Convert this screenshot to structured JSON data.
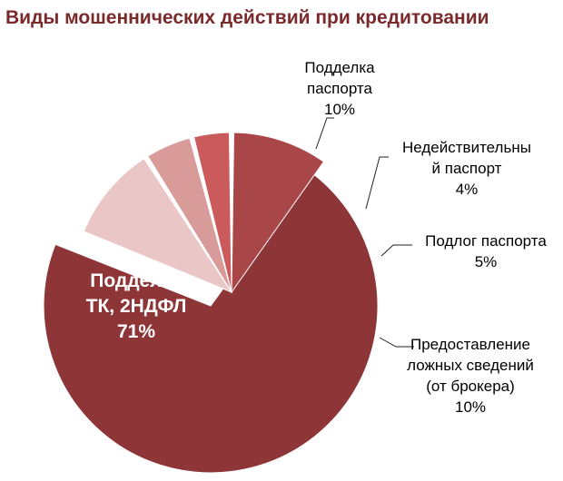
{
  "chart_data": {
    "type": "pie",
    "exploded": true,
    "title": "Виды мошеннических действий при кредитовании",
    "slices": [
      {
        "label_lines": [
          "Подделка",
          "ТК, 2НДФЛ"
        ],
        "value": 71,
        "value_label": "71%",
        "color": "#8e3537",
        "label_color": "#ffffff",
        "label_inside": true
      },
      {
        "label_lines": [
          "Подделка",
          "паспорта"
        ],
        "value": 10,
        "value_label": "10%",
        "color": "#a94648",
        "label_color": "#000000",
        "label_inside": false
      },
      {
        "label_lines": [
          "Недействительны",
          "й паспорт"
        ],
        "value": 4,
        "value_label": "4%",
        "color": "#cb5a5c",
        "label_color": "#000000",
        "label_inside": false
      },
      {
        "label_lines": [
          "Подлог паспорта"
        ],
        "value": 5,
        "value_label": "5%",
        "color": "#d99a9a",
        "label_color": "#000000",
        "label_inside": false
      },
      {
        "label_lines": [
          "Предоставление",
          "ложных сведений",
          "(от брокера)"
        ],
        "value": 10,
        "value_label": "10%",
        "color": "#ebc6c6",
        "label_color": "#000000",
        "label_inside": false
      }
    ]
  }
}
